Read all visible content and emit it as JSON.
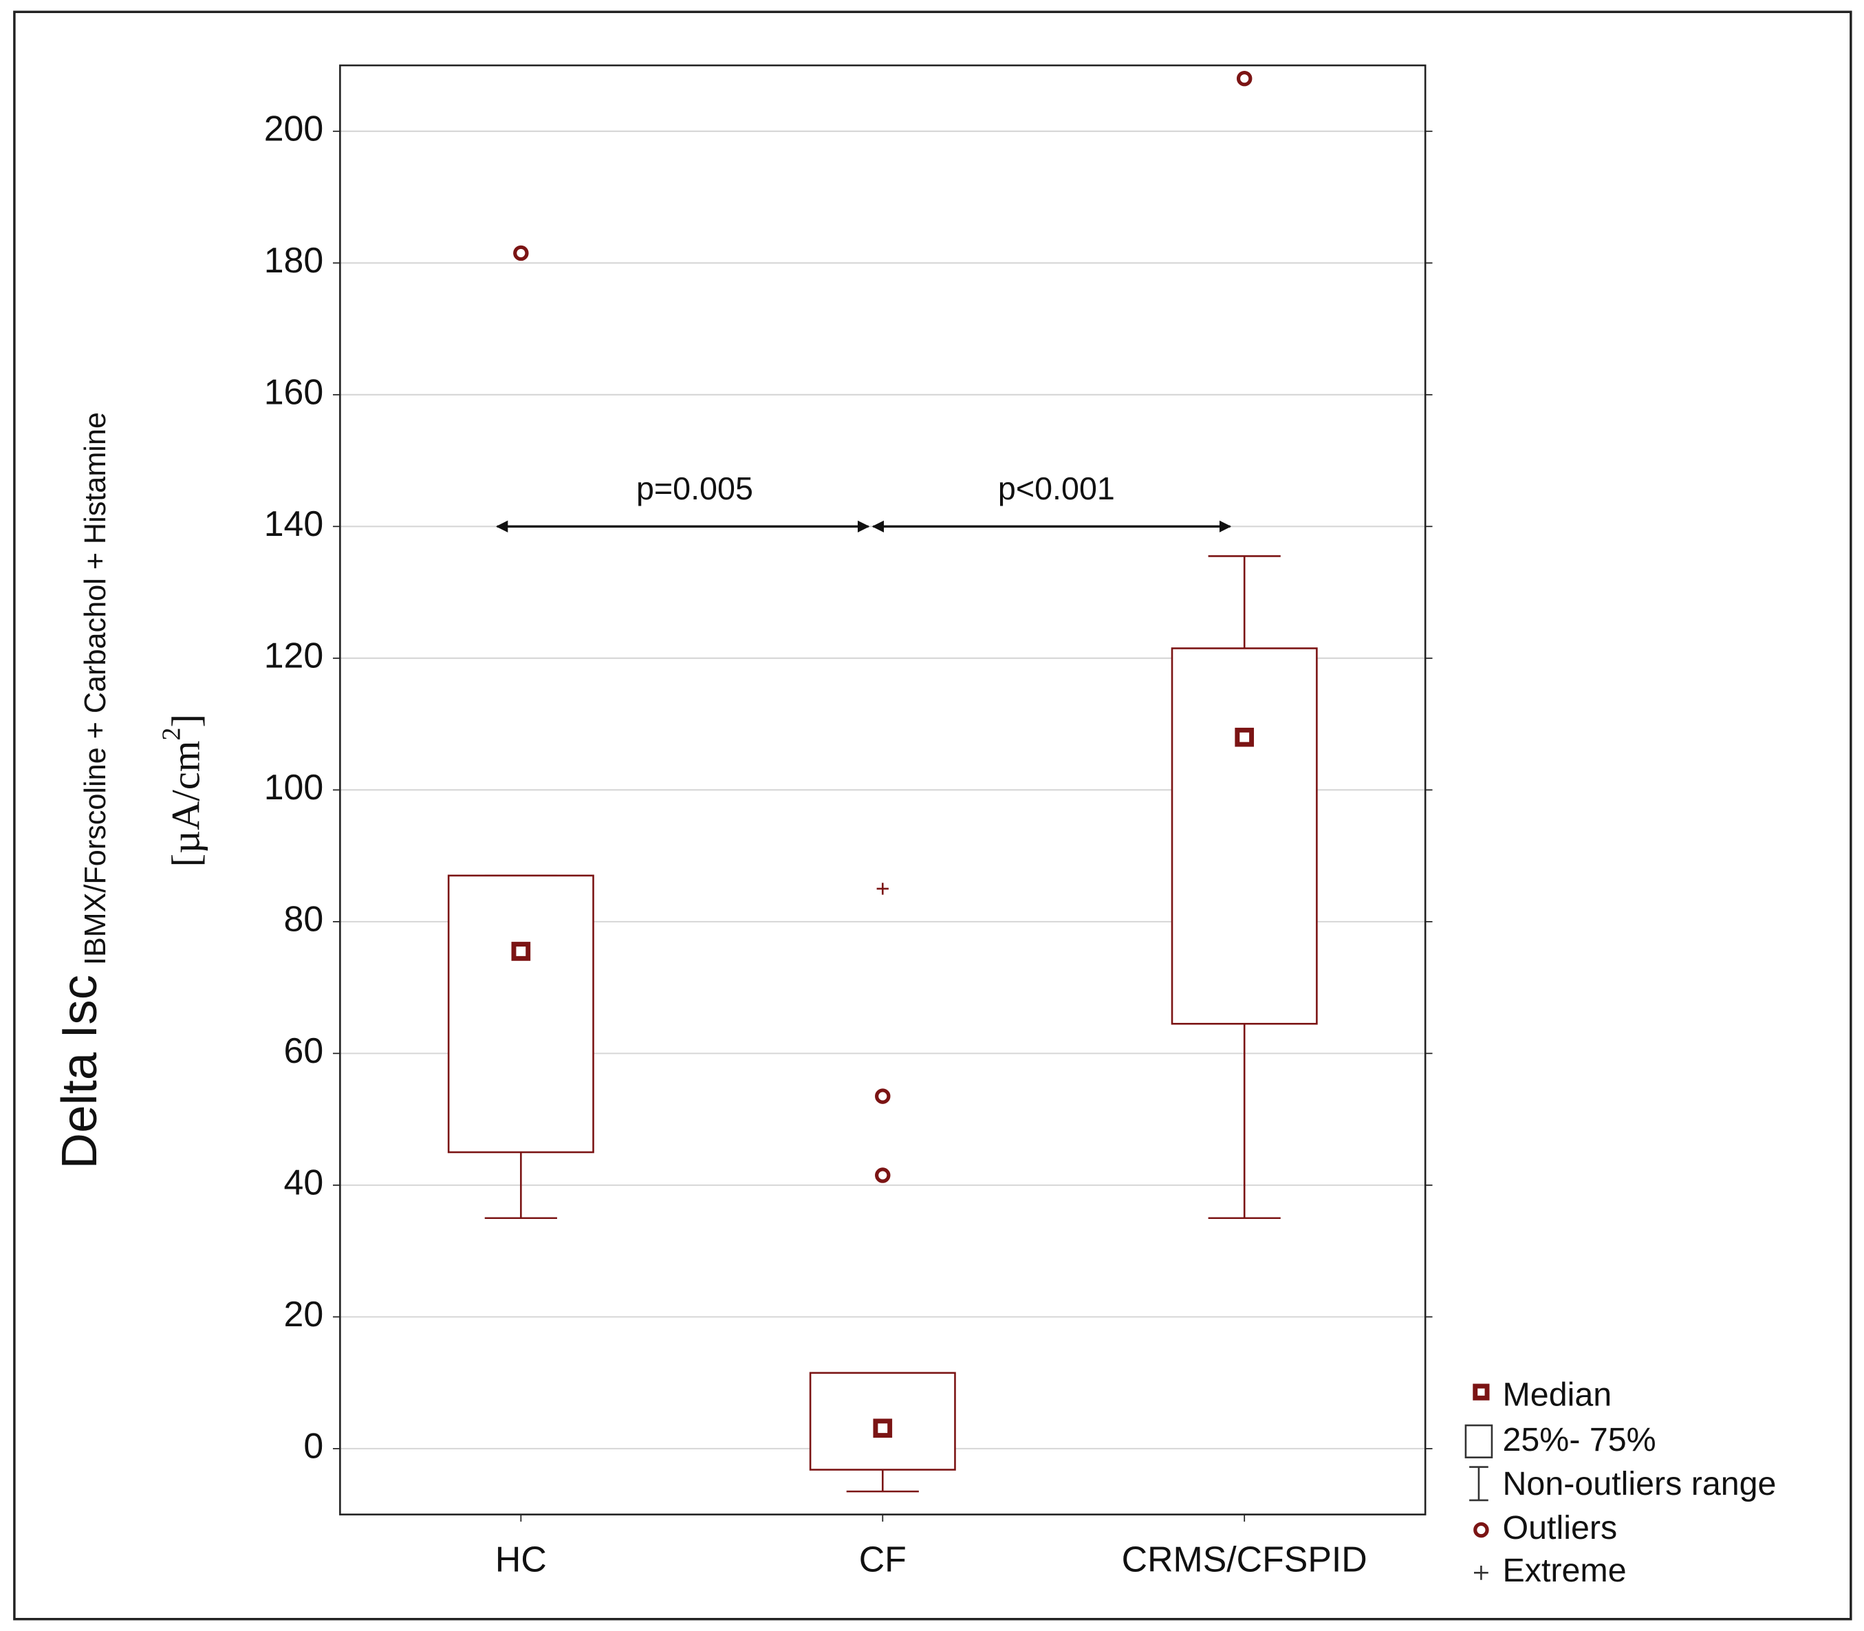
{
  "chart_data": {
    "type": "box",
    "y_label": {
      "main": "Delta Isc",
      "subscript": "IBMX/Forscoline + Carbachol + Histamine",
      "unit": "[µA/cm",
      "unit_superscript": "2",
      "unit_close": "]"
    },
    "categories": [
      "HC",
      "CF",
      "CRMS/CFSPID"
    ],
    "boxes": [
      {
        "min": 35,
        "q1": 45,
        "median": 75.5,
        "q3": 87,
        "max": 87,
        "outliers": [
          181.5
        ],
        "extremes": []
      },
      {
        "min": -6.5,
        "q1": -3.2,
        "median": 3.1,
        "q3": 11.5,
        "max": 11.5,
        "outliers": [
          53.5,
          41.5
        ],
        "extremes": [
          85
        ]
      },
      {
        "min": 35,
        "q1": 64.5,
        "median": 108,
        "q3": 121.5,
        "max": 135.5,
        "outliers": [
          208
        ],
        "extremes": []
      }
    ],
    "comparisons": [
      {
        "label": "p=0.005",
        "y": 140
      },
      {
        "label": "p<0.001",
        "y": 140
      }
    ],
    "color": "#7b1414",
    "ylim": [
      -10,
      210
    ],
    "yticks": [
      0,
      20,
      40,
      60,
      80,
      100,
      120,
      140,
      160,
      180,
      200
    ],
    "grid": true,
    "legend": [
      "Median",
      "25%- 75%",
      "Non-outliers range",
      "Outliers",
      "Extreme"
    ]
  }
}
